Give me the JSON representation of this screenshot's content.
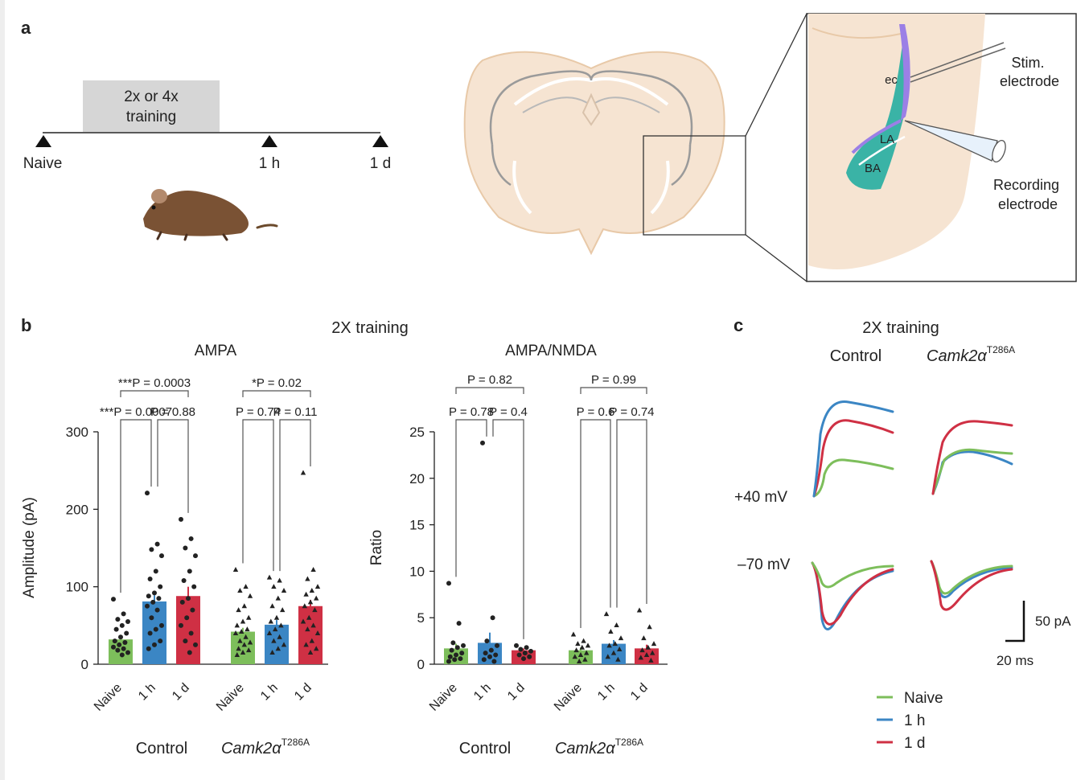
{
  "panel_a": {
    "label": "a",
    "training_box": [
      "2x or 4x",
      "training"
    ],
    "timeline": [
      "Naive",
      "1 h",
      "1 d"
    ],
    "brain_labels": {
      "ec": "ec",
      "la": "LA",
      "ba": "BA"
    },
    "stim_label": [
      "Stim.",
      "electrode"
    ],
    "rec_label": [
      "Recording",
      "electrode"
    ]
  },
  "panel_b": {
    "label": "b",
    "title": "2X training",
    "groups": [
      "Control",
      "Camk2α",
      "T286A"
    ],
    "group_sup": "T286A"
  },
  "panel_c": {
    "label": "c",
    "title": "2X training",
    "col_control": "Control",
    "col_mut": "Camk2α",
    "col_sup": "T286A",
    "row_pos": "+40 mV",
    "row_neg": "–70 mV",
    "scale_y": "50 pA",
    "scale_x": "20 ms",
    "legend": [
      "Naive",
      "1 h",
      "1 d"
    ]
  },
  "colors": {
    "naive": "#7dbe5b",
    "h1": "#3b86c4",
    "d1": "#cf3044",
    "teal": "#3ab3a6",
    "purple": "#9b7fe6",
    "brain": "#f6e4d2",
    "brain_edge": "#e8c9a8"
  },
  "chart_data": [
    {
      "type": "bar",
      "title": "AMPA",
      "ylabel": "Amplitude (pA)",
      "ylim": [
        0,
        300
      ],
      "yticks": [
        "0",
        "100",
        "200",
        "300"
      ],
      "categories": [
        "Naive",
        "1 h",
        "1 d",
        "Naive",
        "1 h",
        "1 d"
      ],
      "groups": [
        "Control",
        "Camk2α T286A"
      ],
      "values": [
        32,
        81,
        88,
        42,
        51,
        75
      ],
      "errors": [
        6,
        8,
        12,
        5,
        6,
        8
      ],
      "comparisons": [
        {
          "text": "***P = 0.0007",
          "from": 0,
          "to": 1
        },
        {
          "text": "P = 0.88",
          "from": 1,
          "to": 2
        },
        {
          "text": "***P = 0.0003",
          "from": 0,
          "to": 2
        },
        {
          "text": "P = 0.74",
          "from": 3,
          "to": 4
        },
        {
          "text": "P = 0.11",
          "from": 4,
          "to": 5
        },
        {
          "text": "*P = 0.02",
          "from": 3,
          "to": 5
        }
      ],
      "points": [
        [
          84,
          65,
          58,
          55,
          50,
          45,
          40,
          35,
          30,
          28,
          25,
          22,
          20,
          18,
          15,
          12
        ],
        [
          221,
          155,
          148,
          140,
          120,
          110,
          100,
          92,
          88,
          85,
          80,
          75,
          70,
          60,
          50,
          45,
          40,
          30,
          25,
          20
        ],
        [
          187,
          162,
          150,
          140,
          120,
          108,
          100,
          85,
          80,
          70,
          60,
          50,
          40,
          30,
          25,
          15
        ],
        [
          122,
          100,
          95,
          88,
          75,
          70,
          60,
          55,
          50,
          45,
          42,
          40,
          35,
          30,
          28,
          25,
          20,
          18,
          15,
          12
        ],
        [
          112,
          108,
          100,
          95,
          85,
          75,
          70,
          60,
          55,
          50,
          45,
          40,
          35,
          30,
          25,
          20,
          15
        ],
        [
          247,
          122,
          110,
          100,
          95,
          90,
          85,
          80,
          75,
          70,
          60,
          55,
          50,
          45,
          40,
          30,
          25,
          20,
          15
        ]
      ]
    },
    {
      "type": "bar",
      "title": "AMPA/NMDA",
      "ylabel": "Ratio",
      "ylim": [
        0,
        25
      ],
      "yticks": [
        "0",
        "5",
        "10",
        "15",
        "20",
        "25"
      ],
      "categories": [
        "Naive",
        "1 h",
        "1 d",
        "Naive",
        "1 h",
        "1 d"
      ],
      "groups": [
        "Control",
        "Camk2α T286A"
      ],
      "values": [
        1.7,
        2.3,
        1.5,
        1.5,
        2.2,
        1.7
      ],
      "errors": [
        0.5,
        1.1,
        0.2,
        0.3,
        0.4,
        0.4
      ],
      "comparisons": [
        {
          "text": "P = 0.78",
          "from": 0,
          "to": 1
        },
        {
          "text": "P = 0.4",
          "from": 1,
          "to": 2
        },
        {
          "text": "P = 0.82",
          "from": 0,
          "to": 2
        },
        {
          "text": "P = 0.6",
          "from": 3,
          "to": 4
        },
        {
          "text": "P = 0.74",
          "from": 4,
          "to": 5
        },
        {
          "text": "P = 0.99",
          "from": 3,
          "to": 5
        }
      ],
      "points": [
        [
          8.7,
          4.4,
          2.3,
          2,
          1.8,
          1.5,
          1.2,
          1,
          0.8,
          0.6,
          0.5,
          0.3
        ],
        [
          23.8,
          5,
          2.5,
          2,
          1.5,
          1.2,
          1,
          0.8,
          0.5,
          0.3
        ],
        [
          2,
          1.8,
          1.6,
          1.4,
          1.2,
          1,
          0.8,
          0.6
        ],
        [
          3.2,
          2.5,
          2.2,
          2,
          1.8,
          1.5,
          1.2,
          1,
          0.8,
          0.5,
          0.3
        ],
        [
          5.4,
          4.2,
          3.5,
          2.8,
          2.2,
          2,
          1.6,
          1.2,
          0.8,
          0.5
        ],
        [
          5.8,
          4,
          2.8,
          2.2,
          1.8,
          1.5,
          1.2,
          1,
          0.7,
          0.4
        ]
      ]
    }
  ]
}
